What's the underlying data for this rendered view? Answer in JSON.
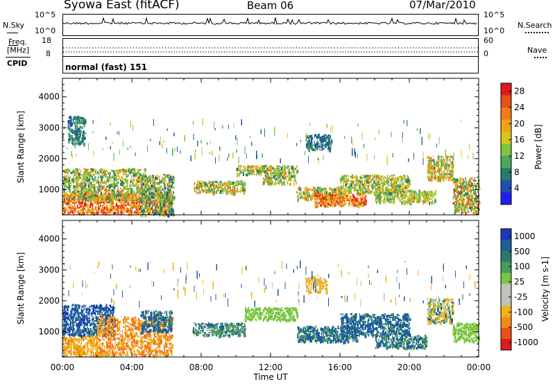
{
  "header": {
    "station": "Syowa East (fitACF)",
    "beam": "Beam 06",
    "date": "07/Mar/2010"
  },
  "noise_panel": {
    "left_label": "N.Sky",
    "right_label": "N.Search",
    "left_ticks": [
      "10^5",
      "10^0"
    ],
    "right_ticks": [
      "10^5",
      "10^0"
    ]
  },
  "freq_panel": {
    "left_label_line1": "Freq.",
    "left_label_line2": "[MHz]",
    "right_label": "Nave",
    "left_ticks": [
      "18",
      "8"
    ],
    "right_ticks": [
      "60",
      "0"
    ]
  },
  "cpid_panel": {
    "label": "CPID",
    "mode": "normal (fast) 151"
  },
  "colors": {
    "power": [
      "#1f1ff5",
      "#1f4fb3",
      "#2a7a6a",
      "#4aa75f",
      "#7ec441",
      "#d8c41c",
      "#f2a21a",
      "#f27a1a",
      "#e8501a",
      "#e01a1a"
    ],
    "velocity": [
      "#1a3aba",
      "#1d5e9a",
      "#2a7a6a",
      "#4a9a5a",
      "#7bc441",
      "#bdbdb6",
      "#c7c7c0",
      "#f2b01a",
      "#f28a1a",
      "#e8501a",
      "#e01a1a"
    ]
  },
  "chart_data": [
    {
      "type": "scatter",
      "name": "power",
      "xlabel": "",
      "ylabel": "Slant Range [km]",
      "xlim": [
        0,
        24
      ],
      "ylim": [
        180,
        4600
      ],
      "xticks": [
        "00:00",
        "04:00",
        "08:00",
        "12:00",
        "16:00",
        "20:00",
        "00:00"
      ],
      "yticks": [
        1000,
        2000,
        3000,
        4000
      ],
      "colorbar_label": "Power [dB]",
      "colorbar_ticks": [
        "4",
        "8",
        "12",
        "16",
        "20",
        "24",
        "28"
      ],
      "colorbar_range": [
        0,
        30
      ],
      "regions": [
        {
          "t": [
            0.0,
            6.3
          ],
          "r": [
            250,
            900
          ],
          "v": [
            16,
            30
          ]
        },
        {
          "t": [
            0.0,
            4.8
          ],
          "r": [
            700,
            1700
          ],
          "v": [
            6,
            22
          ]
        },
        {
          "t": [
            0.3,
            1.3
          ],
          "r": [
            2500,
            3400
          ],
          "v": [
            4,
            12
          ]
        },
        {
          "t": [
            4.5,
            6.4
          ],
          "r": [
            200,
            1500
          ],
          "v": [
            4,
            20
          ]
        },
        {
          "t": [
            7.5,
            10.5
          ],
          "r": [
            900,
            1300
          ],
          "v": [
            8,
            24
          ]
        },
        {
          "t": [
            10.0,
            13.5
          ],
          "r": [
            1500,
            1800
          ],
          "v": [
            6,
            22
          ]
        },
        {
          "t": [
            11.5,
            13.5
          ],
          "r": [
            1200,
            1500
          ],
          "v": [
            8,
            22
          ]
        },
        {
          "t": [
            13.5,
            16.3
          ],
          "r": [
            700,
            1100
          ],
          "v": [
            8,
            24
          ]
        },
        {
          "t": [
            14.5,
            17.5
          ],
          "r": [
            500,
            900
          ],
          "v": [
            16,
            30
          ]
        },
        {
          "t": [
            14.0,
            15.5
          ],
          "r": [
            2300,
            2800
          ],
          "v": [
            4,
            10
          ]
        },
        {
          "t": [
            16.0,
            20.0
          ],
          "r": [
            900,
            1500
          ],
          "v": [
            8,
            22
          ]
        },
        {
          "t": [
            18.0,
            21.5
          ],
          "r": [
            600,
            1000
          ],
          "v": [
            8,
            20
          ]
        },
        {
          "t": [
            21.0,
            22.5
          ],
          "r": [
            1300,
            2100
          ],
          "v": [
            8,
            24
          ]
        },
        {
          "t": [
            22.5,
            24.0
          ],
          "r": [
            250,
            1400
          ],
          "v": [
            6,
            26
          ]
        }
      ]
    },
    {
      "type": "scatter",
      "name": "velocity",
      "xlabel": "Time UT",
      "ylabel": "Slant Range [km]",
      "xlim": [
        0,
        24
      ],
      "ylim": [
        180,
        4600
      ],
      "xticks": [
        "00:00",
        "04:00",
        "08:00",
        "12:00",
        "16:00",
        "20:00",
        "00:00"
      ],
      "yticks": [
        1000,
        2000,
        3000,
        4000
      ],
      "colorbar_label": "Velocity [m s-1]",
      "colorbar_ticks": [
        "1000",
        "500",
        "100",
        "25",
        "-25",
        "-100",
        "-500",
        "-1000"
      ],
      "colorbar_range": [
        1000,
        -1000
      ],
      "regions": [
        {
          "t": [
            0.0,
            2.0
          ],
          "r": [
            250,
            900
          ],
          "v": [
            -600,
            -100
          ]
        },
        {
          "t": [
            0.0,
            3.0
          ],
          "r": [
            900,
            1900
          ],
          "v": [
            50,
            700
          ]
        },
        {
          "t": [
            2.0,
            6.3
          ],
          "r": [
            250,
            1500
          ],
          "v": [
            -900,
            -200
          ]
        },
        {
          "t": [
            4.5,
            6.3
          ],
          "r": [
            1000,
            1700
          ],
          "v": [
            50,
            300
          ]
        },
        {
          "t": [
            7.5,
            10.5
          ],
          "r": [
            900,
            1300
          ],
          "v": [
            30,
            150
          ]
        },
        {
          "t": [
            10.5,
            13.5
          ],
          "r": [
            1400,
            1800
          ],
          "v": [
            -20,
            20
          ]
        },
        {
          "t": [
            13.5,
            17.0
          ],
          "r": [
            700,
            1200
          ],
          "v": [
            40,
            200
          ]
        },
        {
          "t": [
            16.0,
            20.0
          ],
          "r": [
            900,
            1600
          ],
          "v": [
            50,
            400
          ]
        },
        {
          "t": [
            18.0,
            21.0
          ],
          "r": [
            500,
            900
          ],
          "v": [
            40,
            200
          ]
        },
        {
          "t": [
            21.0,
            22.5
          ],
          "r": [
            1300,
            2100
          ],
          "v": [
            -300,
            200
          ]
        },
        {
          "t": [
            22.5,
            24.0
          ],
          "r": [
            700,
            1300
          ],
          "v": [
            -20,
            20
          ]
        },
        {
          "t": [
            14.0,
            15.2
          ],
          "r": [
            2300,
            2800
          ],
          "v": [
            -300,
            -50
          ]
        }
      ]
    }
  ]
}
